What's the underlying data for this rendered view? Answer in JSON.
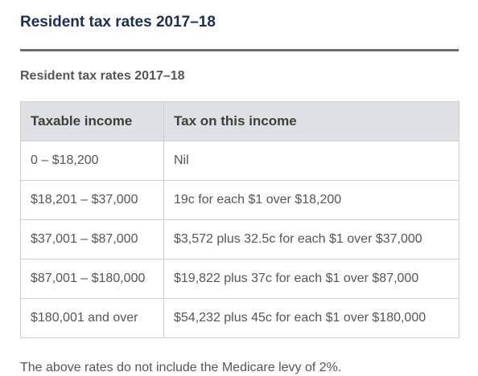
{
  "page": {
    "heading": "Resident tax rates 2017–18"
  },
  "table": {
    "caption": "Resident tax rates 2017–18",
    "headers": [
      "Taxable income",
      "Tax on this income"
    ],
    "rows": [
      [
        "0 – $18,200",
        "Nil"
      ],
      [
        "$18,201 – $37,000",
        "19c for each $1 over $18,200"
      ],
      [
        "$37,001 – $87,000",
        "$3,572 plus 32.5c for each $1 over $37,000"
      ],
      [
        "$87,001 – $180,000",
        "$19,822 plus 37c for each $1 over $87,000"
      ],
      [
        "$180,001 and over",
        "$54,232 plus 45c for each $1 over $180,000"
      ]
    ]
  },
  "footnote": {
    "text": "The above rates do not include the Medicare levy of 2%."
  },
  "colors": {
    "heading": "#1d2e4f",
    "rule": "#6b6b6b",
    "header_bg": "#dee0e1",
    "border": "#cfcfcf",
    "text": "#555555"
  }
}
